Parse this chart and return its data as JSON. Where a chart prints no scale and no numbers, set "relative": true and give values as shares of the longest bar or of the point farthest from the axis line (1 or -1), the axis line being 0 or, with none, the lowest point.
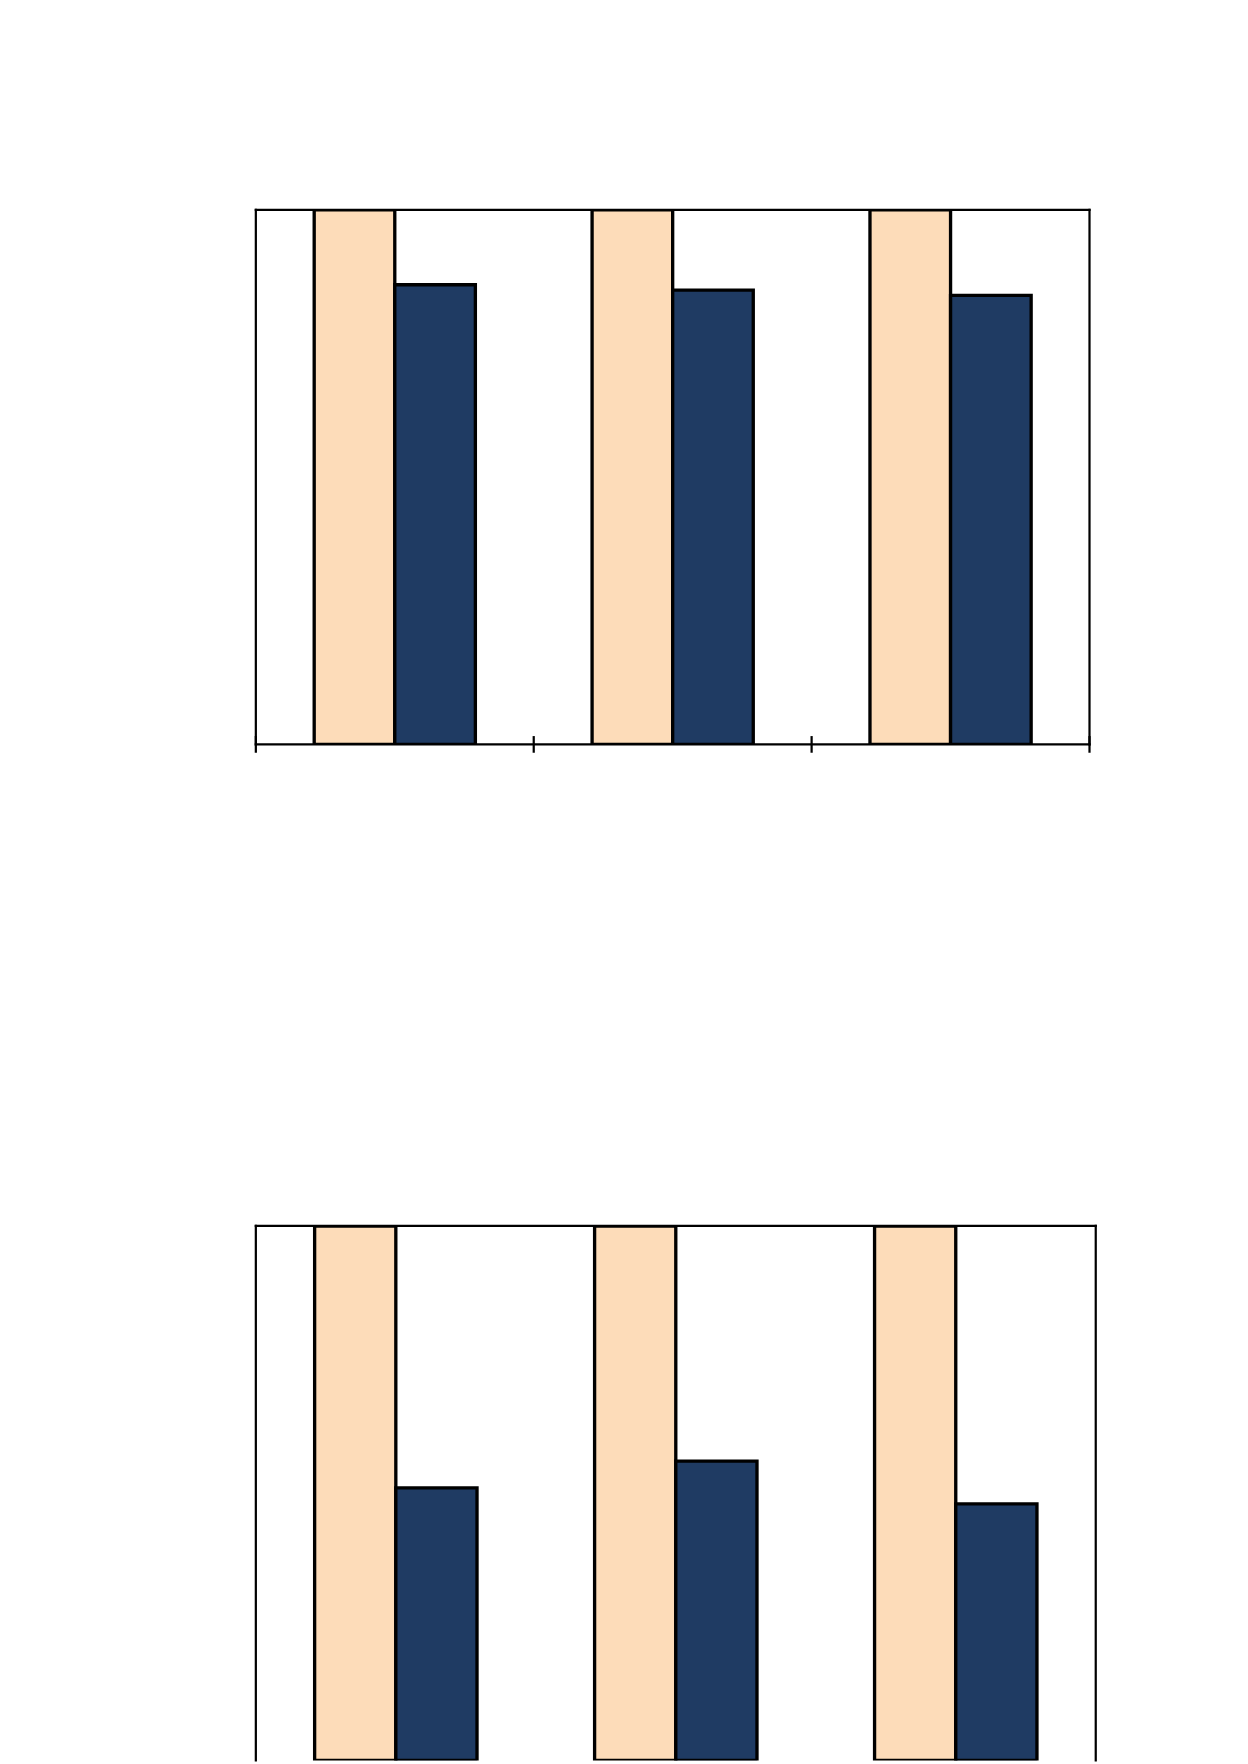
{
  "chart_data": [
    {
      "type": "bar",
      "relative": true,
      "categories": [
        null,
        null,
        null
      ],
      "series": [
        {
          "color": "#fddcb9",
          "values": [
            1,
            1,
            1
          ]
        },
        {
          "color": "#1f3b63",
          "values": [
            0.86,
            0.85,
            0.84
          ]
        }
      ]
    },
    {
      "type": "bar",
      "relative": true,
      "categories": [
        null,
        null,
        null
      ],
      "series": [
        {
          "color": "#fddcb9",
          "values": [
            1,
            1,
            1
          ]
        },
        {
          "color": "#1f3b63",
          "values": [
            0.51,
            0.56,
            0.48
          ]
        }
      ]
    }
  ]
}
